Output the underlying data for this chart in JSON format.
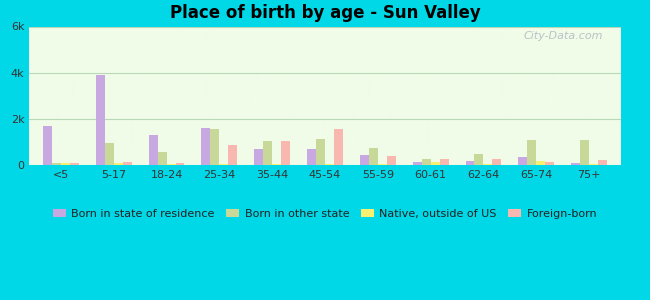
{
  "title": "Place of birth by age - Sun Valley",
  "categories": [
    "<5",
    "5-17",
    "18-24",
    "25-34",
    "35-44",
    "45-54",
    "55-59",
    "60-61",
    "62-64",
    "65-74",
    "75+"
  ],
  "series": {
    "Born in state of residence": {
      "color": "#c8a8e0",
      "values": [
        1700,
        3900,
        1300,
        1600,
        700,
        700,
        450,
        150,
        200,
        350,
        100
      ]
    },
    "Born in other state": {
      "color": "#c8d898",
      "values": [
        100,
        950,
        550,
        1550,
        1050,
        1150,
        750,
        250,
        500,
        1100,
        1100
      ]
    },
    "Native, outside of US": {
      "color": "#f8f070",
      "values": [
        80,
        80,
        60,
        60,
        60,
        70,
        60,
        150,
        50,
        200,
        60
      ]
    },
    "Foreign-born": {
      "color": "#f8b8b0",
      "values": [
        100,
        130,
        80,
        850,
        1050,
        1550,
        380,
        280,
        250,
        130,
        220
      ]
    }
  },
  "ylim": [
    0,
    6000
  ],
  "yticks": [
    0,
    2000,
    4000,
    6000
  ],
  "ytick_labels": [
    "0",
    "2k",
    "4k",
    "6k"
  ],
  "bg_color_top": "#c8e8c8",
  "bg_color_bottom": "#f0fce8",
  "outer_background": "#00d8e8",
  "grid_color": "#b8d8b8",
  "watermark": "City-Data.com",
  "bar_width": 0.17,
  "legend_marker_colors": [
    "#d8a8d8",
    "#c8cc90",
    "#f8f070",
    "#f8b8b0"
  ]
}
